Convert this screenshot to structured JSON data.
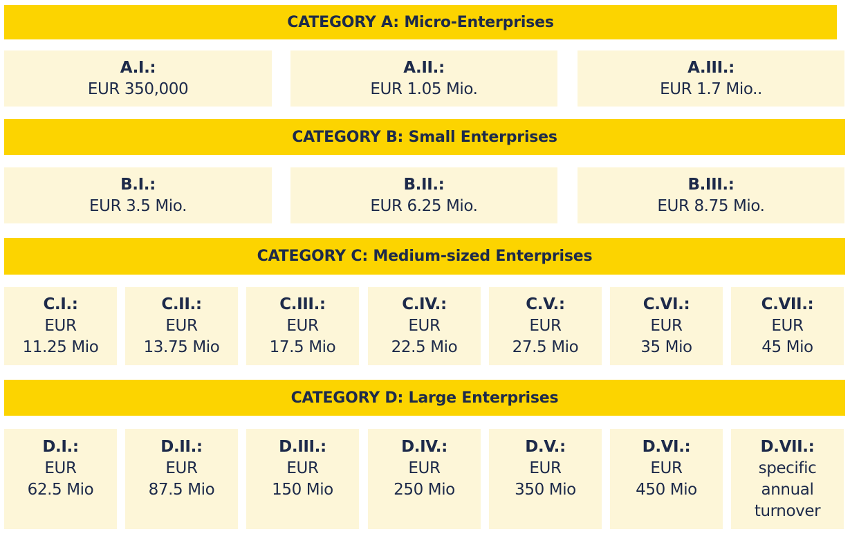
{
  "categories": [
    {
      "title": "CATEGORY A: Micro-Enterprises",
      "tiers": [
        {
          "code": "A.I.:",
          "value": "EUR 350,000"
        },
        {
          "code": "A.II.:",
          "value": "EUR 1.05 Mio."
        },
        {
          "code": "A.III.:",
          "value": "EUR 1.7 Mio.."
        }
      ]
    },
    {
      "title": "CATEGORY B: Small Enterprises",
      "tiers": [
        {
          "code": "B.I.:",
          "value": "EUR 3.5 Mio."
        },
        {
          "code": "B.II.:",
          "value": "EUR 6.25 Mio."
        },
        {
          "code": "B.III.:",
          "value": "EUR 8.75 Mio."
        }
      ]
    },
    {
      "title": "CATEGORY C: Medium-sized Enterprises",
      "tiers": [
        {
          "code": "C.I.:",
          "line1": "EUR",
          "line2": "11.25 Mio"
        },
        {
          "code": "C.II.:",
          "line1": "EUR",
          "line2": "13.75 Mio"
        },
        {
          "code": "C.III.:",
          "line1": "EUR",
          "line2": "17.5 Mio"
        },
        {
          "code": "C.IV.:",
          "line1": "EUR",
          "line2": "22.5 Mio"
        },
        {
          "code": "C.V.:",
          "line1": "EUR",
          "line2": "27.5 Mio"
        },
        {
          "code": "C.VI.:",
          "line1": "EUR",
          "line2": "35 Mio"
        },
        {
          "code": "C.VII.:",
          "line1": "EUR",
          "line2": "45 Mio"
        }
      ]
    },
    {
      "title": "CATEGORY D: Large Enterprises",
      "tiers": [
        {
          "code": "D.I.:",
          "line1": "EUR",
          "line2": "62.5 Mio"
        },
        {
          "code": "D.II.:",
          "line1": "EUR",
          "line2": "87.5 Mio"
        },
        {
          "code": "D.III.:",
          "line1": "EUR",
          "line2": "150 Mio"
        },
        {
          "code": "D.IV.:",
          "line1": "EUR",
          "line2": "250 Mio"
        },
        {
          "code": "D.V.:",
          "line1": "EUR",
          "line2": "350 Mio"
        },
        {
          "code": "D.VI.:",
          "line1": "EUR",
          "line2": "450 Mio"
        },
        {
          "code": "D.VII.:",
          "line1": "specific",
          "line2": "annual",
          "line3": "turnover"
        }
      ]
    }
  ],
  "colors": {
    "banner": "#fcd400",
    "cell": "#fdf6d8",
    "text": "#1d2a4a"
  }
}
